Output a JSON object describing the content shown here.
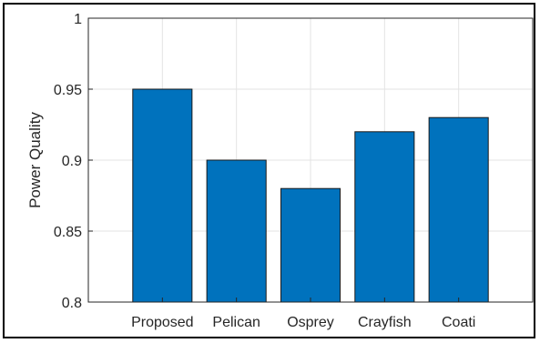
{
  "chart_data": {
    "type": "bar",
    "categories": [
      "Proposed",
      "Pelican",
      "Osprey",
      "Crayfish",
      "Coati"
    ],
    "values": [
      0.95,
      0.9,
      0.88,
      0.92,
      0.93
    ],
    "title": "",
    "xlabel": "",
    "ylabel": "Power Quality",
    "ylim": [
      0.8,
      1
    ],
    "yticks": [
      "0.8",
      "0.85",
      "0.9",
      "0.95",
      "1"
    ],
    "grid": true,
    "bar_color": "#0072BD",
    "bar_edge_color": "#1a1a1a"
  }
}
